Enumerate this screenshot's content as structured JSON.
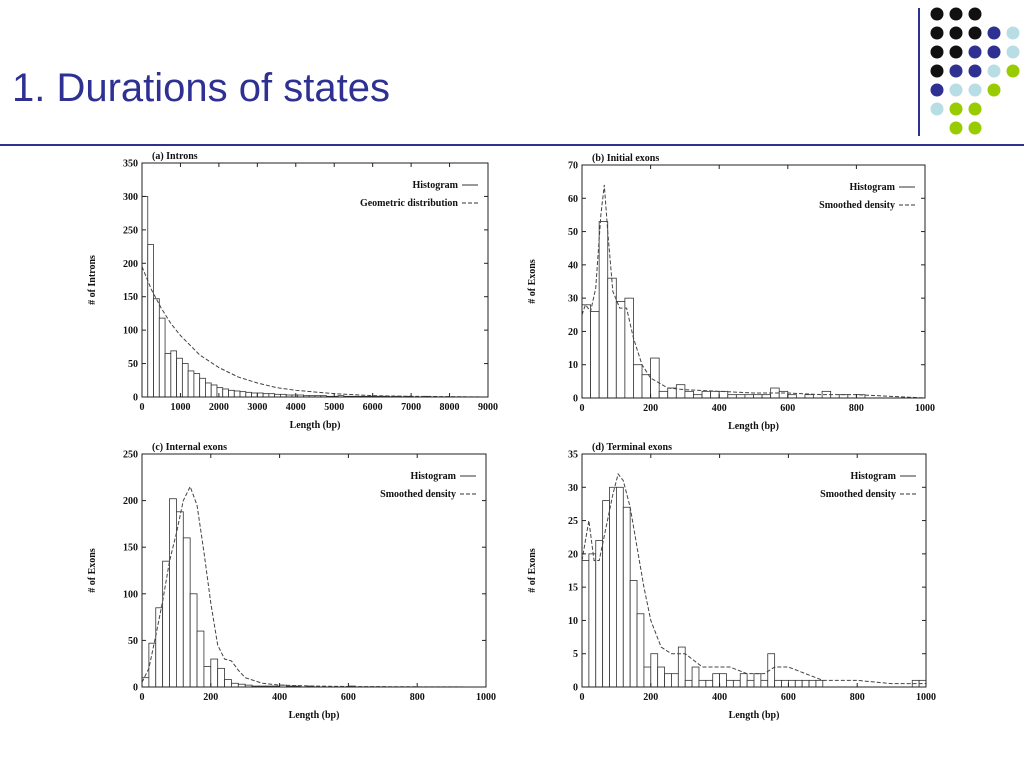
{
  "slide": {
    "title": "1. Durations of states",
    "title_color": "#2e3192",
    "accent_colors": {
      "black": "#111111",
      "indigo": "#2e3192",
      "lightblue": "#b9dde5",
      "lime": "#99cc00"
    },
    "dot_grid_rows": [
      [
        "none",
        "black",
        "black",
        "black",
        "none",
        "none"
      ],
      [
        "none",
        "black",
        "black",
        "black",
        "indigo",
        "lightblue"
      ],
      [
        "none",
        "black",
        "black",
        "indigo",
        "indigo",
        "lightblue"
      ],
      [
        "none",
        "black",
        "indigo",
        "indigo",
        "lightblue",
        "lime"
      ],
      [
        "none",
        "indigo",
        "lightblue",
        "lightblue",
        "lime",
        "none"
      ],
      [
        "none",
        "lightblue",
        "lime",
        "lime",
        "none",
        "none"
      ],
      [
        "none",
        "none",
        "lime",
        "lime",
        "none",
        "none"
      ]
    ]
  },
  "chart_data": [
    {
      "type": "bar",
      "title": "(a) Introns",
      "xlabel": "Length (bp)",
      "ylabel": "# of Introns",
      "xlim": [
        0,
        9000
      ],
      "ylim": [
        0,
        350
      ],
      "xticks": [
        0,
        1000,
        2000,
        3000,
        4000,
        5000,
        6000,
        7000,
        8000,
        9000
      ],
      "yticks": [
        0,
        50,
        100,
        150,
        200,
        250,
        300,
        350
      ],
      "bin_width": 150,
      "legend": [
        "Histogram",
        "Geometric distribution"
      ],
      "legend_position": "top-right",
      "histogram": [
        300,
        228,
        147,
        118,
        65,
        69,
        58,
        50,
        39,
        35,
        28,
        21,
        18,
        14,
        12,
        10,
        9,
        8,
        7,
        6,
        6,
        5,
        5,
        4,
        4,
        3,
        3,
        3,
        2,
        2,
        2,
        2,
        1,
        1,
        2,
        1,
        1,
        1,
        1,
        1,
        1,
        1,
        1,
        0,
        1,
        0,
        1,
        0,
        0,
        1
      ],
      "curve": {
        "x": [
          0,
          250,
          500,
          750,
          1000,
          1500,
          2000,
          2500,
          3000,
          3500,
          4000,
          5000,
          6000,
          7000,
          9000
        ],
        "y": [
          195,
          160,
          133,
          110,
          92,
          63,
          44,
          30,
          21,
          14,
          10,
          5,
          2,
          1,
          0
        ]
      }
    },
    {
      "type": "bar",
      "title": "(b) Initial exons",
      "xlabel": "Length (bp)",
      "ylabel": "# of Exons",
      "xlim": [
        0,
        1000
      ],
      "ylim": [
        0,
        70
      ],
      "xticks": [
        0,
        200,
        400,
        600,
        800,
        1000
      ],
      "yticks": [
        0,
        10,
        20,
        30,
        40,
        50,
        60,
        70
      ],
      "bin_width": 25,
      "legend": [
        "Histogram",
        "Smoothed density"
      ],
      "legend_position": "top-right",
      "histogram": [
        28,
        26,
        53,
        36,
        29,
        30,
        10,
        7,
        12,
        2,
        3,
        4,
        2,
        1,
        2,
        2,
        2,
        1,
        1,
        1,
        1,
        1,
        3,
        2,
        1,
        0,
        1,
        0,
        2,
        0,
        1,
        0,
        1,
        0,
        0,
        0,
        0,
        0,
        0,
        0
      ],
      "curve": {
        "x": [
          0,
          10,
          25,
          40,
          55,
          65,
          75,
          90,
          110,
          130,
          150,
          175,
          200,
          250,
          300,
          400,
          500,
          600,
          700,
          800,
          900,
          1000
        ],
        "y": [
          25,
          28,
          26,
          33,
          55,
          64,
          50,
          32,
          27,
          27,
          18,
          10,
          6,
          3,
          2.5,
          2,
          1.5,
          1.5,
          1,
          1,
          0.5,
          0
        ]
      }
    },
    {
      "type": "bar",
      "title": "(c) Internal exons",
      "xlabel": "Length (bp)",
      "ylabel": "# of Exons",
      "xlim": [
        0,
        1000
      ],
      "ylim": [
        0,
        250
      ],
      "xticks": [
        0,
        200,
        400,
        600,
        800,
        1000
      ],
      "yticks": [
        0,
        50,
        100,
        150,
        200,
        250
      ],
      "bin_width": 20,
      "legend": [
        "Histogram",
        "Smoothed density"
      ],
      "legend_position": "top-right",
      "histogram": [
        10,
        47,
        85,
        135,
        202,
        188,
        160,
        100,
        60,
        22,
        30,
        20,
        8,
        4,
        3,
        2,
        1,
        1,
        1,
        1,
        2,
        1,
        1,
        0,
        1,
        0,
        0,
        0,
        0,
        0,
        1,
        0,
        0,
        0,
        0,
        0,
        0,
        0,
        0,
        0,
        0,
        0,
        0,
        0,
        0,
        0,
        0,
        0,
        0,
        0
      ],
      "curve": {
        "x": [
          0,
          20,
          40,
          60,
          80,
          100,
          120,
          140,
          160,
          180,
          200,
          220,
          240,
          260,
          280,
          300,
          350,
          400,
          500,
          600,
          800,
          1000
        ],
        "y": [
          5,
          20,
          55,
          92,
          135,
          165,
          200,
          215,
          195,
          145,
          90,
          45,
          30,
          28,
          18,
          10,
          4,
          2,
          1,
          0.5,
          0.2,
          0
        ]
      }
    },
    {
      "type": "bar",
      "title": "(d) Terminal exons",
      "xlabel": "Length (bp)",
      "ylabel": "# of Exons",
      "xlim": [
        0,
        1000
      ],
      "ylim": [
        0,
        35
      ],
      "xticks": [
        0,
        200,
        400,
        600,
        800,
        1000
      ],
      "yticks": [
        0,
        5,
        10,
        15,
        20,
        25,
        30,
        35
      ],
      "bin_width": 20,
      "legend": [
        "Histogram",
        "Smoothed density"
      ],
      "legend_position": "top-right",
      "histogram": [
        19,
        20,
        22,
        28,
        30,
        30,
        27,
        16,
        11,
        3,
        5,
        3,
        2,
        2,
        6,
        1,
        3,
        1,
        1,
        2,
        2,
        1,
        1,
        2,
        1,
        2,
        1,
        5,
        1,
        1,
        1,
        1,
        1,
        1,
        1,
        0,
        0,
        0,
        0,
        0,
        0,
        0,
        0,
        0,
        0,
        0,
        0,
        0,
        1,
        1
      ],
      "curve": {
        "x": [
          0,
          10,
          20,
          35,
          50,
          70,
          90,
          105,
          120,
          140,
          160,
          180,
          200,
          230,
          260,
          300,
          350,
          400,
          430,
          480,
          530,
          560,
          600,
          650,
          700,
          800,
          900,
          1000
        ],
        "y": [
          19,
          22,
          25,
          19,
          19,
          24,
          29,
          32,
          31,
          27,
          21,
          15,
          10,
          6,
          5,
          5,
          3,
          3,
          3,
          2,
          2,
          3,
          3,
          2,
          1,
          1,
          0.5,
          0.5
        ]
      }
    }
  ]
}
